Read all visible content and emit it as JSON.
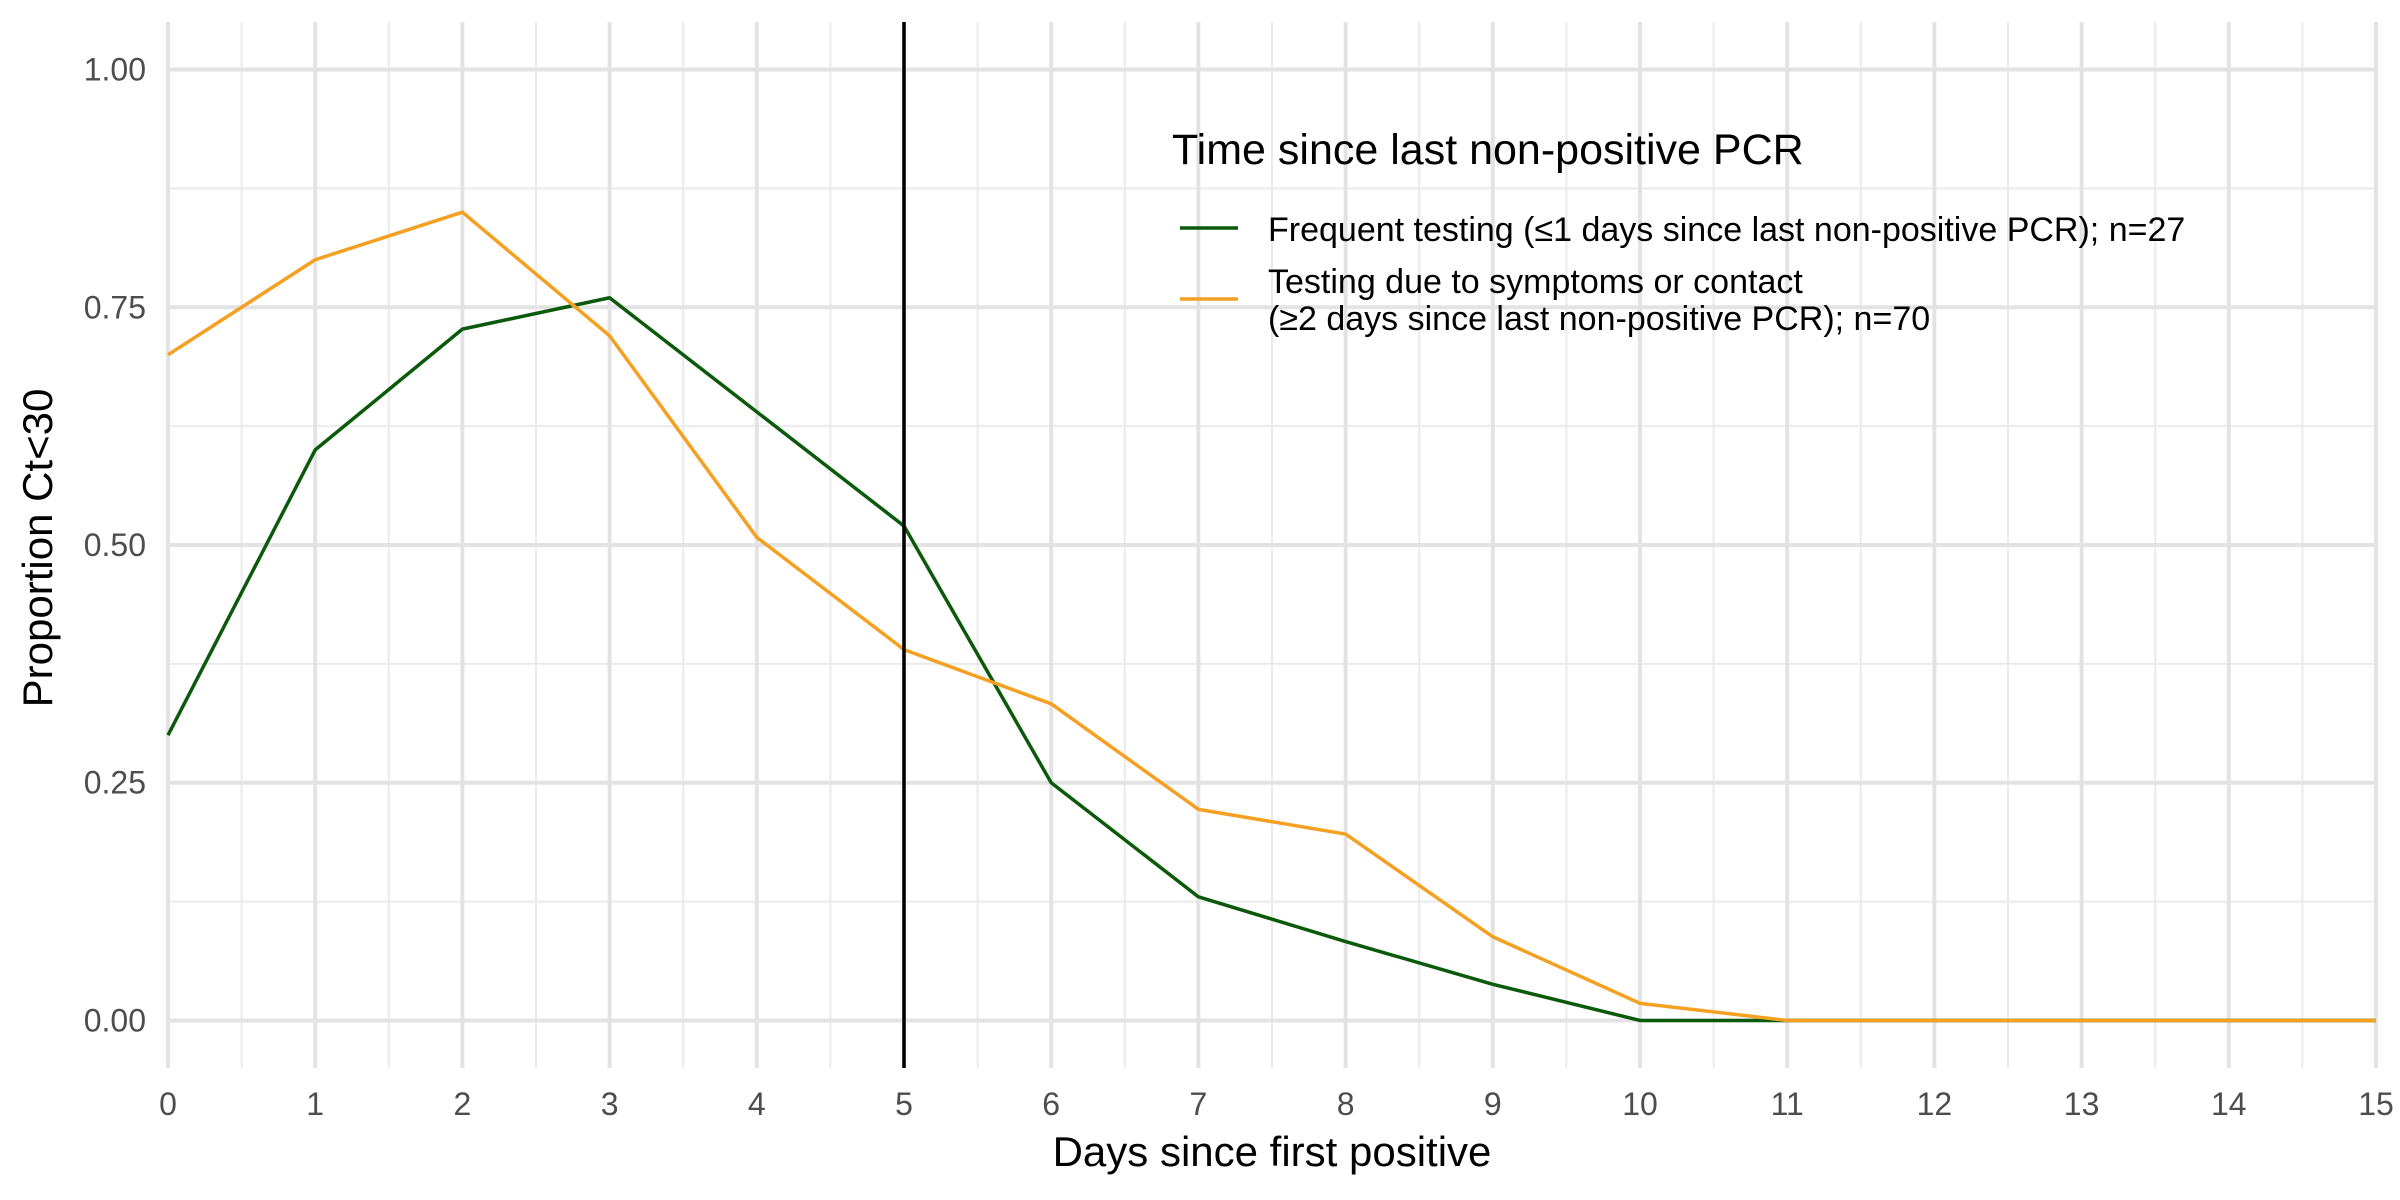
{
  "chart_data": {
    "type": "line",
    "xlabel": "Days since first positive",
    "ylabel": "Proportion Ct<30",
    "xlim": [
      0,
      15
    ],
    "ylim": [
      -0.05,
      1.05
    ],
    "x_ticks": [
      0,
      1,
      2,
      3,
      4,
      5,
      6,
      7,
      8,
      9,
      10,
      11,
      12,
      13,
      14,
      15
    ],
    "x_tick_labels": [
      "0",
      "1",
      "2",
      "3",
      "4",
      "5",
      "6",
      "7",
      "8",
      "9",
      "10",
      "11",
      "12",
      "13",
      "14",
      "15"
    ],
    "y_ticks": [
      0,
      0.25,
      0.5,
      0.75,
      1.0
    ],
    "y_tick_labels": [
      "0.00",
      "0.25",
      "0.50",
      "0.75",
      "1.00"
    ],
    "grid": true,
    "vline": 5,
    "vline_color": "#000000",
    "legend": {
      "title": "Time since last non-positive PCR",
      "placement": "top-right"
    },
    "x": [
      0,
      1,
      2,
      3,
      4,
      5,
      6,
      7,
      8,
      9,
      10,
      11,
      12,
      13,
      14,
      15
    ],
    "series": [
      {
        "name": "Frequent testing (≤1 days since last non-positive PCR); n=27",
        "legend_lines": [
          "Frequent testing (≤1 days since last non-positive PCR); n=27"
        ],
        "color": "#0b5a0b",
        "values": [
          0.3,
          0.6,
          0.727,
          0.76,
          0.64,
          0.52,
          0.25,
          0.13,
          0.083,
          0.038,
          0.0,
          0.0,
          0.0,
          0.0,
          0.0,
          0.0
        ]
      },
      {
        "name": "Testing due to symptoms or contact (≥2 days since last non-positive PCR); n=70",
        "legend_lines": [
          "Testing due to symptoms or contact",
          "(≥2 days since last non-positive PCR); n=70"
        ],
        "color": "#f5a020",
        "values": [
          0.7,
          0.8,
          0.85,
          0.72,
          0.508,
          0.39,
          0.333,
          0.222,
          0.196,
          0.088,
          0.018,
          0.0,
          0.0,
          0.0,
          0.0,
          0.0
        ]
      }
    ]
  }
}
